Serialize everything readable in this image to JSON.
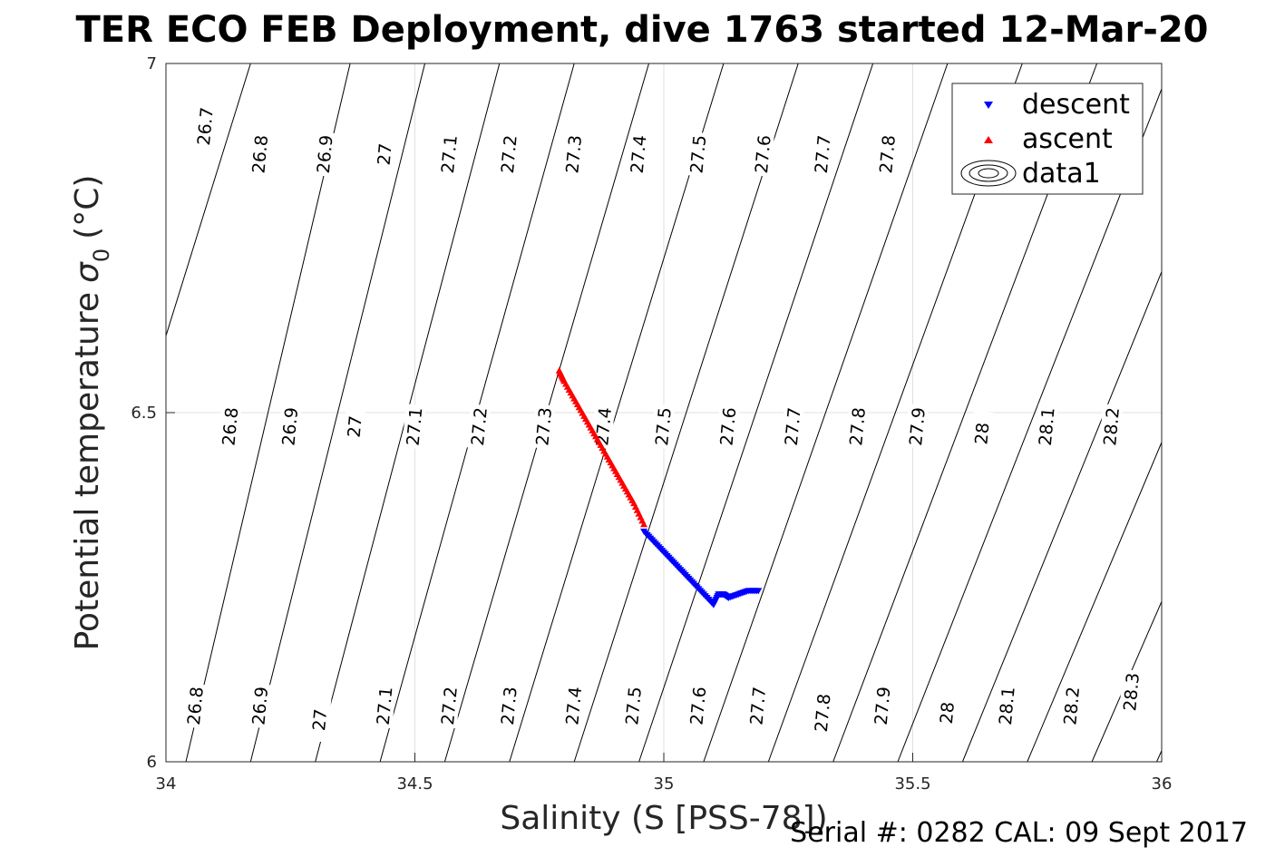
{
  "chart_data": {
    "type": "scatter",
    "title": "TER ECO FEB Deployment, dive 1763 started 12-Mar-20",
    "xlabel": "Salinity (S [PSS-78])",
    "ylabel": "Potential temperature σ₀ (°C)",
    "ylabel_main": "Potential temperature",
    "ylabel_symbol": "σ",
    "ylabel_sub": "0",
    "ylabel_unit": "(°C)",
    "xlim": [
      34,
      36
    ],
    "ylim": [
      6,
      7
    ],
    "xticks": [
      34,
      34.5,
      35,
      35.5,
      36
    ],
    "xtick_labels": [
      "34",
      "34.5",
      "35",
      "35.5",
      "36"
    ],
    "yticks": [
      6,
      6.5,
      7
    ],
    "ytick_labels": [
      "6",
      "6.5",
      "7"
    ],
    "grid": true,
    "legend_position": "top-right",
    "series": [
      {
        "name": "descent",
        "color": "#0000ff",
        "marker": "triangle-down",
        "points": [
          [
            34.96,
            6.33
          ],
          [
            34.98,
            6.315
          ],
          [
            35.0,
            6.3
          ],
          [
            35.02,
            6.285
          ],
          [
            35.04,
            6.27
          ],
          [
            35.06,
            6.255
          ],
          [
            35.08,
            6.24
          ],
          [
            35.1,
            6.225
          ],
          [
            35.11,
            6.24
          ],
          [
            35.12,
            6.24
          ],
          [
            35.13,
            6.235
          ],
          [
            35.15,
            6.24
          ],
          [
            35.17,
            6.245
          ],
          [
            35.19,
            6.245
          ]
        ]
      },
      {
        "name": "ascent",
        "color": "#ff0000",
        "marker": "triangle-up",
        "points": [
          [
            34.79,
            6.56
          ],
          [
            34.8,
            6.545
          ],
          [
            34.82,
            6.52
          ],
          [
            34.84,
            6.495
          ],
          [
            34.86,
            6.47
          ],
          [
            34.88,
            6.445
          ],
          [
            34.9,
            6.42
          ],
          [
            34.92,
            6.395
          ],
          [
            34.94,
            6.37
          ],
          [
            34.96,
            6.34
          ]
        ]
      },
      {
        "name": "data1",
        "type": "contour",
        "color": "#000000",
        "marker": "contour-rings",
        "lines": [
          {
            "label": "26.7",
            "points": [
              [
                34.17,
                7.0
              ],
              [
                34.0,
                6.61
              ]
            ]
          },
          {
            "label": "26.8",
            "points": [
              [
                34.37,
                7.0
              ],
              [
                34.04,
                6.0
              ]
            ]
          },
          {
            "label": "26.9",
            "points": [
              [
                34.52,
                7.0
              ],
              [
                34.17,
                6.0
              ]
            ]
          },
          {
            "label": "27",
            "points": [
              [
                34.67,
                7.0
              ],
              [
                34.3,
                6.0
              ]
            ]
          },
          {
            "label": "27.1",
            "points": [
              [
                34.82,
                7.0
              ],
              [
                34.43,
                6.0
              ]
            ]
          },
          {
            "label": "27.2",
            "points": [
              [
                34.97,
                7.0
              ],
              [
                34.56,
                6.0
              ]
            ]
          },
          {
            "label": "27.3",
            "points": [
              [
                35.12,
                7.0
              ],
              [
                34.69,
                6.0
              ]
            ]
          },
          {
            "label": "27.4",
            "points": [
              [
                35.27,
                7.0
              ],
              [
                34.82,
                6.0
              ]
            ]
          },
          {
            "label": "27.5",
            "points": [
              [
                35.42,
                7.0
              ],
              [
                34.95,
                6.0
              ]
            ]
          },
          {
            "label": "27.6",
            "points": [
              [
                35.57,
                7.0
              ],
              [
                35.08,
                6.0
              ]
            ]
          },
          {
            "label": "27.7",
            "points": [
              [
                35.72,
                7.0
              ],
              [
                35.21,
                6.0
              ]
            ]
          },
          {
            "label": "27.8",
            "points": [
              [
                35.87,
                7.0
              ],
              [
                35.34,
                6.0
              ]
            ]
          },
          {
            "label": "27.9",
            "points": [
              [
                36.02,
                7.0
              ],
              [
                35.47,
                6.0
              ]
            ]
          },
          {
            "label": "28",
            "points": [
              [
                36.17,
                7.0
              ],
              [
                35.6,
                6.0
              ]
            ]
          },
          {
            "label": "28.1",
            "points": [
              [
                36.32,
                7.0
              ],
              [
                35.73,
                6.0
              ]
            ]
          },
          {
            "label": "28.2",
            "points": [
              [
                36.47,
                7.0
              ],
              [
                35.86,
                6.0
              ]
            ]
          },
          {
            "label": "28.3",
            "points": [
              [
                36.62,
                7.0
              ],
              [
                35.99,
                6.0
              ]
            ]
          }
        ],
        "labels": [
          {
            "text": "26.7",
            "at": [
              34.08,
              6.91
            ]
          },
          {
            "text": "26.8",
            "at": [
              34.19,
              6.87
            ]
          },
          {
            "text": "26.9",
            "at": [
              34.32,
              6.87
            ]
          },
          {
            "text": "27",
            "at": [
              34.44,
              6.87
            ]
          },
          {
            "text": "27.1",
            "at": [
              34.57,
              6.87
            ]
          },
          {
            "text": "27.2",
            "at": [
              34.69,
              6.87
            ]
          },
          {
            "text": "27.3",
            "at": [
              34.82,
              6.87
            ]
          },
          {
            "text": "27.4",
            "at": [
              34.95,
              6.87
            ]
          },
          {
            "text": "27.5",
            "at": [
              35.07,
              6.87
            ]
          },
          {
            "text": "27.6",
            "at": [
              35.2,
              6.87
            ]
          },
          {
            "text": "27.7",
            "at": [
              35.32,
              6.87
            ]
          },
          {
            "text": "27.8",
            "at": [
              35.45,
              6.87
            ]
          },
          {
            "text": "26.8",
            "at": [
              34.13,
              6.48
            ]
          },
          {
            "text": "26.9",
            "at": [
              34.25,
              6.48
            ]
          },
          {
            "text": "27",
            "at": [
              34.38,
              6.48
            ]
          },
          {
            "text": "27.1",
            "at": [
              34.5,
              6.48
            ]
          },
          {
            "text": "27.2",
            "at": [
              34.63,
              6.48
            ]
          },
          {
            "text": "27.3",
            "at": [
              34.76,
              6.48
            ]
          },
          {
            "text": "27.4",
            "at": [
              34.88,
              6.48
            ]
          },
          {
            "text": "27.5",
            "at": [
              35.0,
              6.48
            ]
          },
          {
            "text": "27.6",
            "at": [
              35.13,
              6.48
            ]
          },
          {
            "text": "27.7",
            "at": [
              35.26,
              6.48
            ]
          },
          {
            "text": "27.8",
            "at": [
              35.39,
              6.48
            ]
          },
          {
            "text": "27.9",
            "at": [
              35.51,
              6.48
            ]
          },
          {
            "text": "28",
            "at": [
              35.64,
              6.47
            ]
          },
          {
            "text": "28.1",
            "at": [
              35.77,
              6.48
            ]
          },
          {
            "text": "28.2",
            "at": [
              35.9,
              6.48
            ]
          },
          {
            "text": "26.8",
            "at": [
              34.06,
              6.08
            ]
          },
          {
            "text": "26.9",
            "at": [
              34.19,
              6.08
            ]
          },
          {
            "text": "27",
            "at": [
              34.31,
              6.06
            ]
          },
          {
            "text": "27.1",
            "at": [
              34.44,
              6.08
            ]
          },
          {
            "text": "27.2",
            "at": [
              34.57,
              6.08
            ]
          },
          {
            "text": "27.3",
            "at": [
              34.69,
              6.08
            ]
          },
          {
            "text": "27.4",
            "at": [
              34.82,
              6.08
            ]
          },
          {
            "text": "27.5",
            "at": [
              34.94,
              6.08
            ]
          },
          {
            "text": "27.6",
            "at": [
              35.07,
              6.08
            ]
          },
          {
            "text": "27.7",
            "at": [
              35.19,
              6.08
            ]
          },
          {
            "text": "27.8",
            "at": [
              35.32,
              6.07
            ]
          },
          {
            "text": "27.9",
            "at": [
              35.44,
              6.08
            ]
          },
          {
            "text": "28",
            "at": [
              35.57,
              6.07
            ]
          },
          {
            "text": "28.1",
            "at": [
              35.69,
              6.08
            ]
          },
          {
            "text": "28.2",
            "at": [
              35.82,
              6.08
            ]
          },
          {
            "text": "28.3",
            "at": [
              35.94,
              6.1
            ]
          }
        ]
      }
    ]
  },
  "footer": {
    "serial_text": "Serial #: 0282  CAL: 09 Sept 2017"
  }
}
